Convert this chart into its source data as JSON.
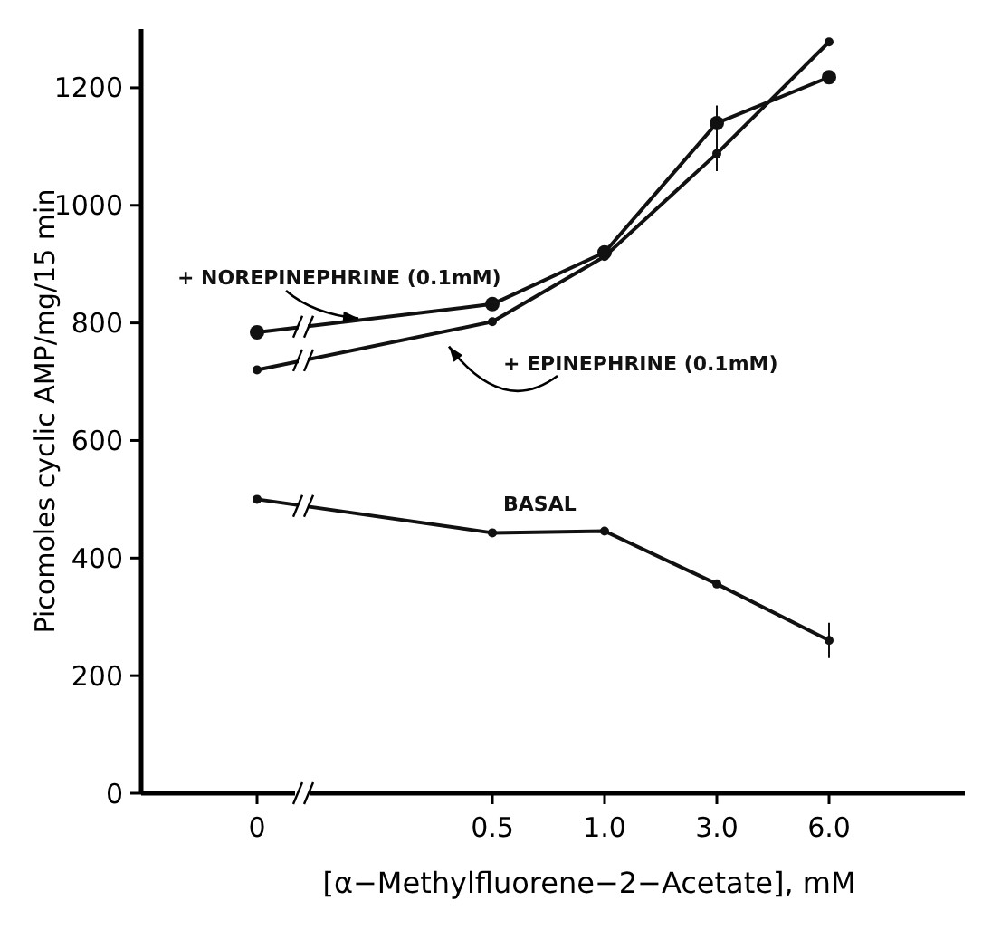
{
  "chart_data": {
    "type": "line",
    "xlabel": "[α−Methylfluorene−2−Acetate], mM",
    "ylabel": "Picomoles cyclic AMP/mg/15 min",
    "categories": [
      "0",
      "0.5",
      "1.0",
      "3.0",
      "6.0"
    ],
    "series": [
      {
        "name": "+ NOREPINEPHRINE (0.1mM)",
        "color": "#111111",
        "values": [
          784,
          832,
          920,
          1140,
          1218
        ]
      },
      {
        "name": "+ EPINEPHRINE (0.1mM)",
        "color": "#111111",
        "values": [
          720,
          802,
          913,
          1088,
          1278
        ],
        "errors": [
          null,
          null,
          null,
          [
            1058,
            1170
          ],
          null
        ]
      },
      {
        "name": "BASAL",
        "color": "#111111",
        "values": [
          500,
          443,
          446,
          356,
          260
        ],
        "errors": [
          null,
          null,
          null,
          null,
          [
            230,
            290
          ]
        ]
      }
    ],
    "ylim": [
      0,
      1300
    ],
    "yticks": [
      0,
      200,
      400,
      600,
      800,
      1000,
      1200
    ],
    "marker": "circle",
    "line_style": "solid",
    "grid": false,
    "legend": false
  }
}
